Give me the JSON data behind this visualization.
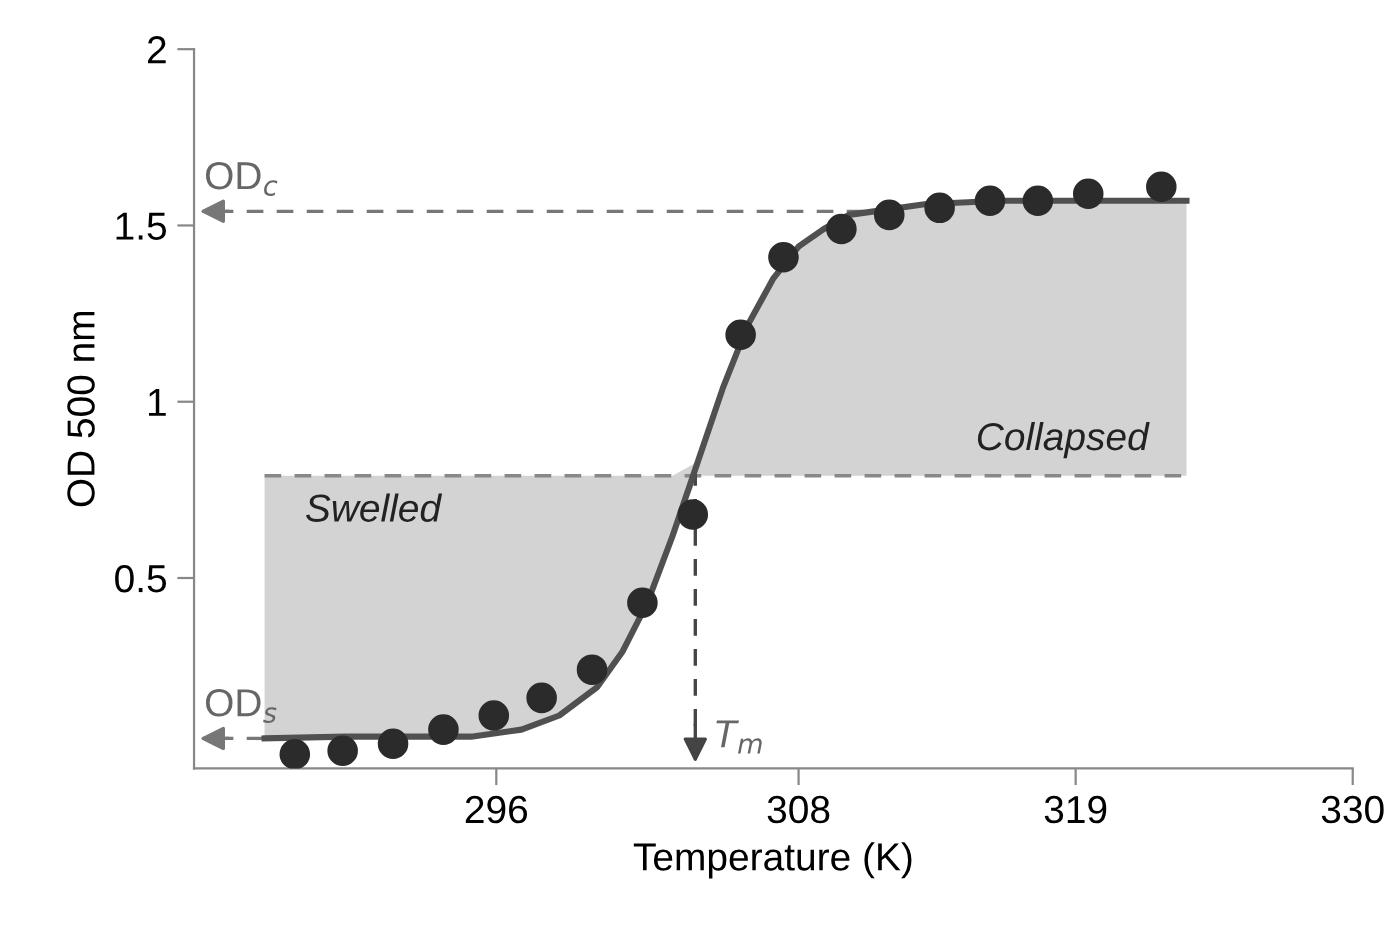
{
  "chart_data": {
    "type": "scatter",
    "xlabel": "Temperature (K)",
    "ylabel": "OD 500 nm",
    "xlim": [
      284,
      330
    ],
    "xticks": [
      296,
      308,
      319,
      330
    ],
    "ylim": [
      -0.04,
      2
    ],
    "yticks": [
      0.5,
      1,
      1.5,
      2
    ],
    "grid": false,
    "marker": "circle",
    "series": [
      {
        "type": "line",
        "color": "#505050",
        "line_style": "solid",
        "marker": "none",
        "x": [
          286.8,
          290,
          293,
          295,
          297,
          298.5,
          300,
          301,
          302,
          303,
          304,
          305,
          306,
          307,
          308,
          309,
          310,
          311,
          313,
          316,
          320,
          323.4
        ],
        "values": [
          0.045,
          0.05,
          0.05,
          0.05,
          0.07,
          0.11,
          0.19,
          0.29,
          0.43,
          0.62,
          0.83,
          1.04,
          1.22,
          1.35,
          1.44,
          1.49,
          1.53,
          1.54,
          1.56,
          1.57,
          1.57,
          1.57
        ],
        "lower": [
          0.045,
          0.05,
          0.05,
          0.05,
          0.07,
          0.11,
          0.19,
          0.29,
          0.43,
          0.62,
          0.79,
          0.79,
          0.79,
          0.79,
          0.79,
          0.79,
          0.79,
          0.79,
          0.79,
          0.79,
          0.79,
          0.79
        ],
        "upper": [
          0.79,
          0.79,
          0.79,
          0.79,
          0.79,
          0.79,
          0.79,
          0.79,
          0.79,
          0.79,
          0.83,
          1.04,
          1.22,
          1.35,
          1.44,
          1.49,
          1.53,
          1.54,
          1.56,
          1.57,
          1.57,
          1.57
        ]
      },
      {
        "color": "#2b2b2b",
        "x": [
          288.0,
          289.9,
          291.9,
          293.9,
          295.9,
          297.8,
          299.8,
          301.8,
          303.8,
          305.7,
          307.4,
          309.7,
          311.6,
          313.6,
          315.6,
          317.5,
          319.5,
          322.4
        ],
        "values": [
          0.0,
          0.01,
          0.03,
          0.07,
          0.11,
          0.16,
          0.24,
          0.43,
          0.68,
          1.19,
          1.41,
          1.49,
          1.53,
          1.55,
          1.57,
          1.57,
          1.59,
          1.61
        ]
      }
    ],
    "ref_lines": [
      {
        "axis": "y",
        "value": 1.54,
        "label": "OD$_{c}$",
        "color": "#777777",
        "line_style": "dashed"
      },
      {
        "axis": "y",
        "value": 0.045,
        "label": "OD$_{s}$",
        "color": "#777777",
        "line_style": "dashed"
      },
      {
        "axis": "y",
        "value": 0.79,
        "color": "#888888",
        "line_style": "dashed"
      },
      {
        "axis": "x",
        "value": 303.9,
        "label": "T$_{m}$",
        "color": "#444444",
        "line_style": "dashed"
      }
    ],
    "annotations": [
      "Swelled",
      "Collapsed"
    ]
  }
}
